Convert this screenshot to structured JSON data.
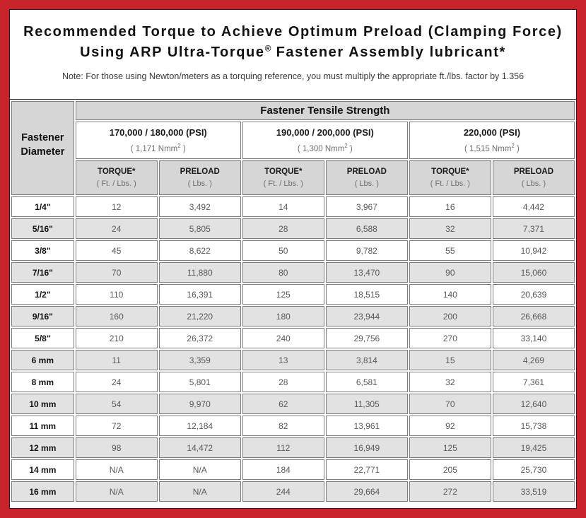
{
  "colors": {
    "frame_red": "#c8232b",
    "header_gray": "#d6d6d6",
    "zebra_gray": "#e2e2e2",
    "cell_border_gray": "#7d7d7d",
    "value_text_gray": "#595959"
  },
  "title": {
    "line1": "Recommended Torque to Achieve Optimum Preload (Clamping Force)",
    "line2_pre": "Using ARP Ultra-Torque",
    "registered_mark": "®",
    "line2_post": " Fastener Assembly lubricant*",
    "note": "Note: For those using Newton/meters as a torquing reference, you must multiply the appropriate ft./lbs. factor by 1.356"
  },
  "table": {
    "corner_label": "Fastener Diameter",
    "tensile_header": "Fastener Tensile Strength",
    "strength_groups": [
      {
        "psi": "170,000 / 180,000 (PSI)",
        "nmm_pre": "( 1,171 Nmm",
        "nmm_sup": "2",
        "nmm_close": " )"
      },
      {
        "psi": "190,000 / 200,000 (PSI)",
        "nmm_pre": "( 1,300 Nmm",
        "nmm_sup": "2",
        "nmm_close": " )"
      },
      {
        "psi": "220,000 (PSI)",
        "nmm_pre": "( 1,515 Nmm",
        "nmm_sup": "2",
        "nmm_close": " )"
      }
    ],
    "sub": {
      "torque_label": "TORQUE*",
      "torque_unit": "( Ft. / Lbs. )",
      "preload_label": "PRELOAD",
      "preload_unit": "( Lbs. )"
    },
    "rows": [
      {
        "diameter": "1/4\"",
        "values": [
          "12",
          "3,492",
          "14",
          "3,967",
          "16",
          "4,442"
        ]
      },
      {
        "diameter": "5/16\"",
        "values": [
          "24",
          "5,805",
          "28",
          "6,588",
          "32",
          "7,371"
        ]
      },
      {
        "diameter": "3/8\"",
        "values": [
          "45",
          "8,622",
          "50",
          "9,782",
          "55",
          "10,942"
        ]
      },
      {
        "diameter": "7/16\"",
        "values": [
          "70",
          "11,880",
          "80",
          "13,470",
          "90",
          "15,060"
        ]
      },
      {
        "diameter": "1/2\"",
        "values": [
          "110",
          "16,391",
          "125",
          "18,515",
          "140",
          "20,639"
        ]
      },
      {
        "diameter": "9/16\"",
        "values": [
          "160",
          "21,220",
          "180",
          "23,944",
          "200",
          "26,668"
        ]
      },
      {
        "diameter": "5/8\"",
        "values": [
          "210",
          "26,372",
          "240",
          "29,756",
          "270",
          "33,140"
        ]
      },
      {
        "diameter": "6 mm",
        "values": [
          "11",
          "3,359",
          "13",
          "3,814",
          "15",
          "4,269"
        ]
      },
      {
        "diameter": "8 mm",
        "values": [
          "24",
          "5,801",
          "28",
          "6,581",
          "32",
          "7,361"
        ]
      },
      {
        "diameter": "10 mm",
        "values": [
          "54",
          "9,970",
          "62",
          "11,305",
          "70",
          "12,640"
        ]
      },
      {
        "diameter": "11 mm",
        "values": [
          "72",
          "12,184",
          "82",
          "13,961",
          "92",
          "15,738"
        ]
      },
      {
        "diameter": "12 mm",
        "values": [
          "98",
          "14,472",
          "112",
          "16,949",
          "125",
          "19,425"
        ]
      },
      {
        "diameter": "14 mm",
        "values": [
          "N/A",
          "N/A",
          "184",
          "22,771",
          "205",
          "25,730"
        ]
      },
      {
        "diameter": "16 mm",
        "values": [
          "N/A",
          "N/A",
          "244",
          "29,664",
          "272",
          "33,519"
        ]
      }
    ]
  }
}
